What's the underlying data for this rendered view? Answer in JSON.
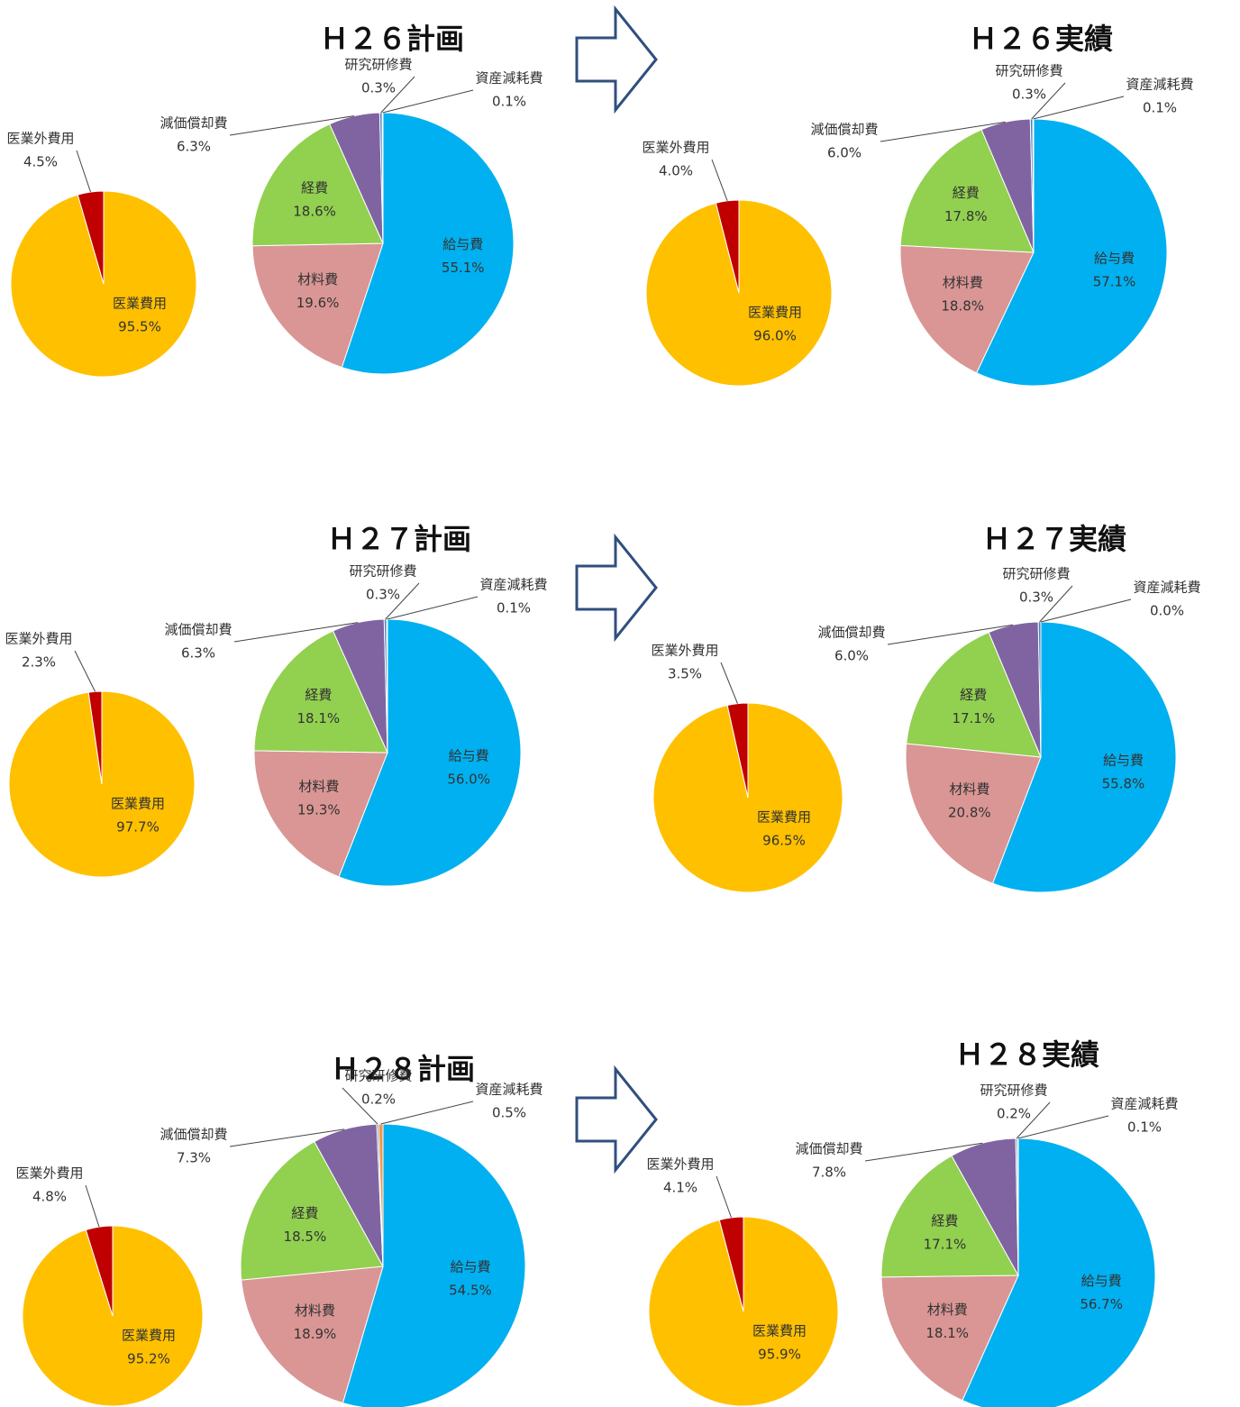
{
  "chart_data": [
    {
      "type": "pie",
      "title": "Ｈ２６計画",
      "pies": [
        {
          "categories": [
            "医業費用",
            "医業外費用"
          ],
          "values": [
            95.5,
            4.5
          ],
          "value_labels": [
            "95.5%",
            "4.5%"
          ],
          "colors": [
            "#ffc000",
            "#c00000"
          ]
        },
        {
          "categories": [
            "給与費",
            "材料費",
            "経費",
            "減価償却費",
            "研究研修費",
            "資産減耗費"
          ],
          "values": [
            55.1,
            19.6,
            18.6,
            6.3,
            0.3,
            0.1
          ],
          "value_labels": [
            "55.1%",
            "19.6%",
            "18.6%",
            "6.3%",
            "0.3%",
            "0.1%"
          ],
          "colors": [
            "#00b0f0",
            "#d99694",
            "#92d050",
            "#8064a2",
            "#4f81bd",
            "#f79646"
          ]
        }
      ]
    },
    {
      "type": "pie",
      "title": "Ｈ２６実績",
      "pies": [
        {
          "categories": [
            "医業費用",
            "医業外費用"
          ],
          "values": [
            96.0,
            4.0
          ],
          "value_labels": [
            "96.0%",
            "4.0%"
          ],
          "colors": [
            "#ffc000",
            "#c00000"
          ]
        },
        {
          "categories": [
            "給与費",
            "材料費",
            "経費",
            "減価償却費",
            "研究研修費",
            "資産減耗費"
          ],
          "values": [
            57.1,
            18.8,
            17.8,
            6.0,
            0.3,
            0.1
          ],
          "value_labels": [
            "57.1%",
            "18.8%",
            "17.8%",
            "6.0%",
            "0.3%",
            "0.1%"
          ],
          "colors": [
            "#00b0f0",
            "#d99694",
            "#92d050",
            "#8064a2",
            "#4f81bd",
            "#f79646"
          ]
        }
      ]
    },
    {
      "type": "pie",
      "title": "Ｈ２７計画",
      "pies": [
        {
          "categories": [
            "医業費用",
            "医業外費用"
          ],
          "values": [
            97.7,
            2.3
          ],
          "value_labels": [
            "97.7%",
            "2.3%"
          ],
          "colors": [
            "#ffc000",
            "#c00000"
          ]
        },
        {
          "categories": [
            "給与費",
            "材料費",
            "経費",
            "減価償却費",
            "研究研修費",
            "資産減耗費"
          ],
          "values": [
            56.0,
            19.3,
            18.1,
            6.3,
            0.3,
            0.1
          ],
          "value_labels": [
            "56.0%",
            "19.3%",
            "18.1%",
            "6.3%",
            "0.3%",
            "0.1%"
          ],
          "colors": [
            "#00b0f0",
            "#d99694",
            "#92d050",
            "#8064a2",
            "#4f81bd",
            "#f79646"
          ]
        }
      ]
    },
    {
      "type": "pie",
      "title": "Ｈ２７実績",
      "pies": [
        {
          "categories": [
            "医業費用",
            "医業外費用"
          ],
          "values": [
            96.5,
            3.5
          ],
          "value_labels": [
            "96.5%",
            "3.5%"
          ],
          "colors": [
            "#ffc000",
            "#c00000"
          ]
        },
        {
          "categories": [
            "給与費",
            "材料費",
            "経費",
            "減価償却費",
            "研究研修費",
            "資産減耗費"
          ],
          "values": [
            55.8,
            20.8,
            17.1,
            6.0,
            0.3,
            0.0
          ],
          "value_labels": [
            "55.8%",
            "20.8%",
            "17.1%",
            "6.0%",
            "0.3%",
            "0.0%"
          ],
          "colors": [
            "#00b0f0",
            "#d99694",
            "#92d050",
            "#8064a2",
            "#4f81bd",
            "#f79646"
          ]
        }
      ]
    },
    {
      "type": "pie",
      "title": "Ｈ２８計画",
      "pies": [
        {
          "categories": [
            "医業費用",
            "医業外費用"
          ],
          "values": [
            95.2,
            4.8
          ],
          "value_labels": [
            "95.2%",
            "4.8%"
          ],
          "colors": [
            "#ffc000",
            "#c00000"
          ]
        },
        {
          "categories": [
            "給与費",
            "材料費",
            "経費",
            "減価償却費",
            "研究研修費",
            "資産減耗費"
          ],
          "values": [
            54.5,
            18.9,
            18.5,
            7.3,
            0.2,
            0.5
          ],
          "value_labels": [
            "54.5%",
            "18.9%",
            "18.5%",
            "7.3%",
            "0.2%",
            "0.5%"
          ],
          "colors": [
            "#00b0f0",
            "#d99694",
            "#92d050",
            "#8064a2",
            "#4f81bd",
            "#f79646"
          ]
        }
      ]
    },
    {
      "type": "pie",
      "title": "Ｈ２８実績",
      "pies": [
        {
          "categories": [
            "医業費用",
            "医業外費用"
          ],
          "values": [
            95.9,
            4.1
          ],
          "value_labels": [
            "95.9%",
            "4.1%"
          ],
          "colors": [
            "#ffc000",
            "#c00000"
          ]
        },
        {
          "categories": [
            "給与費",
            "材料費",
            "経費",
            "減価償却費",
            "研究研修費",
            "資産減耗費"
          ],
          "values": [
            56.7,
            18.1,
            17.1,
            7.8,
            0.2,
            0.1
          ],
          "value_labels": [
            "56.7%",
            "18.1%",
            "17.1%",
            "7.8%",
            "0.2%",
            "0.1%"
          ],
          "colors": [
            "#00b0f0",
            "#d99694",
            "#92d050",
            "#8064a2",
            "#4f81bd",
            "#f79646"
          ]
        }
      ]
    }
  ]
}
